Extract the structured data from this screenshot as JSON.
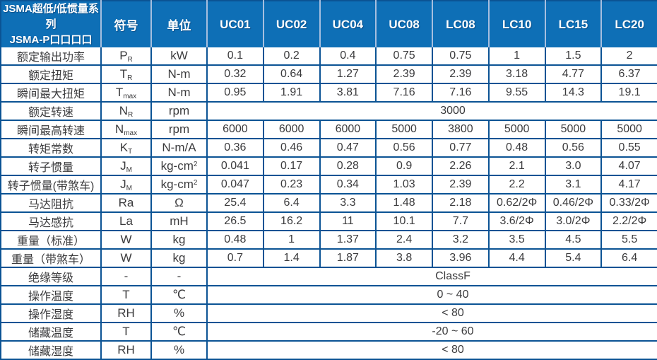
{
  "table": {
    "header": {
      "series_title_line1": "JSMA超低/低惯量系列",
      "series_title_line2": "JSMA-P口口口口",
      "symbol_col": "符号",
      "unit_col": "单位",
      "models": [
        "UC01",
        "UC02",
        "UC04",
        "UC08",
        "LC08",
        "LC10",
        "LC15",
        "LC20"
      ]
    },
    "rows": [
      {
        "label": "额定输出功率",
        "symbol": "P",
        "symbol_sub": "R",
        "unit": "kW",
        "values": [
          "0.1",
          "0.2",
          "0.4",
          "0.75",
          "0.75",
          "1",
          "1.5",
          "2"
        ]
      },
      {
        "label": "额定扭矩",
        "symbol": "T",
        "symbol_sub": "R",
        "unit": "N-m",
        "values": [
          "0.32",
          "0.64",
          "1.27",
          "2.39",
          "2.39",
          "3.18",
          "4.77",
          "6.37"
        ]
      },
      {
        "label": "瞬间最大扭矩",
        "symbol": "T",
        "symbol_sub": "max",
        "unit": "N-m",
        "values": [
          "0.95",
          "1.91",
          "3.81",
          "7.16",
          "7.16",
          "9.55",
          "14.3",
          "19.1"
        ]
      },
      {
        "label": "额定转速",
        "symbol": "N",
        "symbol_sub": "R",
        "unit": "rpm",
        "merged": "3000"
      },
      {
        "label": "瞬间最高转速",
        "symbol": "N",
        "symbol_sub": "max",
        "unit": "rpm",
        "values": [
          "6000",
          "6000",
          "6000",
          "5000",
          "3800",
          "5000",
          "5000",
          "5000"
        ]
      },
      {
        "label": "转矩常数",
        "symbol": "K",
        "symbol_sub": "T",
        "unit": "N-m/A",
        "values": [
          "0.36",
          "0.46",
          "0.47",
          "0.56",
          "0.77",
          "0.48",
          "0.56",
          "0.55"
        ]
      },
      {
        "label": "转子惯量",
        "symbol": "J",
        "symbol_sub": "M",
        "unit": "kg-cm",
        "unit_sup": "2",
        "values": [
          "0.041",
          "0.17",
          "0.28",
          "0.9",
          "2.26",
          "2.1",
          "3.0",
          "4.07"
        ]
      },
      {
        "label": "转子惯量(带煞车)",
        "symbol": "J",
        "symbol_sub": "M",
        "unit": "kg-cm",
        "unit_sup": "2",
        "values": [
          "0.047",
          "0.23",
          "0.34",
          "1.03",
          "2.39",
          "2.2",
          "3.1",
          "4.17"
        ]
      },
      {
        "label": "马达阻抗",
        "symbol": "Ra",
        "unit": "Ω",
        "values": [
          "25.4",
          "6.4",
          "3.3",
          "1.48",
          "2.18",
          "0.62/2Φ",
          "0.46/2Φ",
          "0.33/2Φ"
        ]
      },
      {
        "label": "马达感抗",
        "symbol": "La",
        "unit": "mH",
        "values": [
          "26.5",
          "16.2",
          "11",
          "10.1",
          "7.7",
          "3.6/2Φ",
          "3.0/2Φ",
          "2.2/2Φ"
        ]
      },
      {
        "label": "重量（标准）",
        "symbol": "W",
        "unit": "kg",
        "values": [
          "0.48",
          "1",
          "1.37",
          "2.4",
          "3.2",
          "3.5",
          "4.5",
          "5.5"
        ]
      },
      {
        "label": "重量（带煞车）",
        "symbol": "W",
        "unit": "kg",
        "values": [
          "0.7",
          "1.4",
          "1.87",
          "3.8",
          "3.96",
          "4.4",
          "5.4",
          "6.4"
        ]
      },
      {
        "label": "绝缘等级",
        "symbol": "-",
        "unit": "-",
        "merged": "ClassF"
      },
      {
        "label": "操作温度",
        "symbol": "T",
        "unit": "℃",
        "merged": "0 ~ 40"
      },
      {
        "label": "操作湿度",
        "symbol": "RH",
        "unit": "%",
        "merged": "< 80"
      },
      {
        "label": "储藏温度",
        "symbol": "T",
        "unit": "℃",
        "merged": "-20 ~ 60"
      },
      {
        "label": "储藏湿度",
        "symbol": "RH",
        "unit": "%",
        "merged": "< 80"
      }
    ],
    "colors": {
      "header_bg": "#0e6fb6",
      "header_divider": "#a7bfdf",
      "grid_border": "#0b5394",
      "text": "#3b3b3d"
    }
  }
}
